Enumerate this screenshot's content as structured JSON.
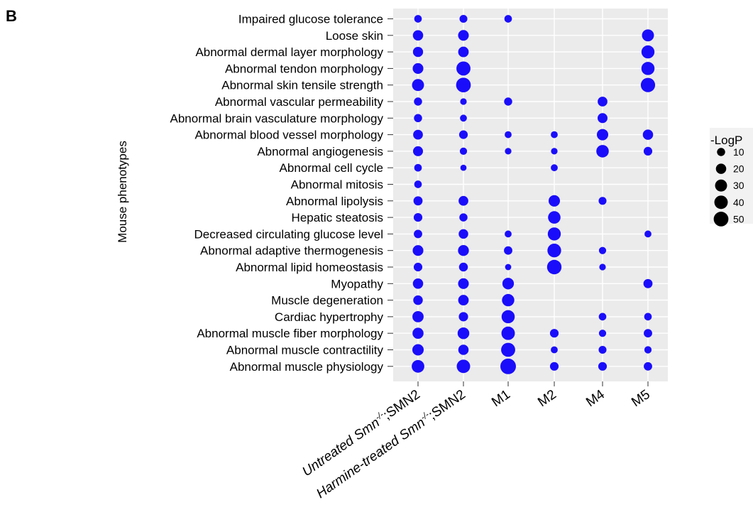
{
  "panel_label": "B",
  "chart_data": {
    "type": "scatter",
    "ylabel": "Mouse phenotypes",
    "categories_x": [
      {
        "label": "Untreated Smn",
        "sup": "-/-",
        "suffix": ";SMN2",
        "italic_prefix": true
      },
      {
        "label": "Harmine-treated Smn",
        "sup": "-/-",
        "suffix": ";SMN2",
        "italic_prefix": true
      },
      {
        "label": "M1"
      },
      {
        "label": "M2"
      },
      {
        "label": "M4"
      },
      {
        "label": "M5"
      }
    ],
    "categories_y": [
      "Impaired glucose tolerance",
      "Loose skin",
      "Abnormal dermal layer morphology",
      "Abnormal tendon morphology",
      "Abnormal skin tensile strength",
      "Abnormal vascular permeability",
      "Abnormal brain vasculature morphology",
      "Abnormal blood vessel morphology",
      "Abnormal angiogenesis",
      "Abnormal cell cycle",
      "Abnormal mitosis",
      "Abnormal lipolysis",
      "Hepatic steatosis",
      "Decreased circulating glucose level",
      "Abnormal adaptive thermogenesis",
      "Abnormal lipid  homeostasis",
      "Myopathy",
      "Muscle degeneration",
      "Cardiac hypertrophy",
      "Abnormal muscle fiber morphology",
      "Abnormal muscle contractility",
      "Abnormal muscle physiology"
    ],
    "point_color": "#1a0dfa",
    "size_legend": {
      "title": "-LogP",
      "values": [
        10,
        20,
        30,
        40,
        50
      ]
    },
    "points_neglogp": [
      [
        8,
        9,
        8,
        null,
        null,
        null
      ],
      [
        20,
        22,
        null,
        null,
        null,
        30
      ],
      [
        19,
        21,
        null,
        null,
        null,
        37
      ],
      [
        22,
        45,
        null,
        null,
        null,
        38
      ],
      [
        30,
        50,
        null,
        null,
        null,
        47
      ],
      [
        10,
        5,
        10,
        null,
        17,
        null
      ],
      [
        10,
        6,
        null,
        null,
        18,
        null
      ],
      [
        17,
        12,
        6,
        6,
        26,
        20
      ],
      [
        18,
        7,
        5,
        5,
        33,
        12
      ],
      [
        8,
        4,
        null,
        6,
        null,
        null
      ],
      [
        8,
        null,
        null,
        null,
        null,
        null
      ],
      [
        14,
        17,
        null,
        26,
        9,
        null
      ],
      [
        12,
        10,
        null,
        33,
        null,
        null
      ],
      [
        11,
        16,
        6,
        37,
        null,
        6
      ],
      [
        22,
        23,
        11,
        42,
        7,
        null
      ],
      [
        12,
        13,
        4,
        48,
        5,
        null
      ],
      [
        20,
        22,
        27,
        null,
        null,
        14
      ],
      [
        16,
        21,
        32,
        null,
        null,
        null
      ],
      [
        25,
        15,
        38,
        null,
        8,
        8
      ],
      [
        24,
        28,
        40,
        12,
        7,
        11
      ],
      [
        26,
        20,
        45,
        6,
        9,
        7
      ],
      [
        34,
        40,
        58,
        12,
        12,
        11
      ]
    ]
  }
}
